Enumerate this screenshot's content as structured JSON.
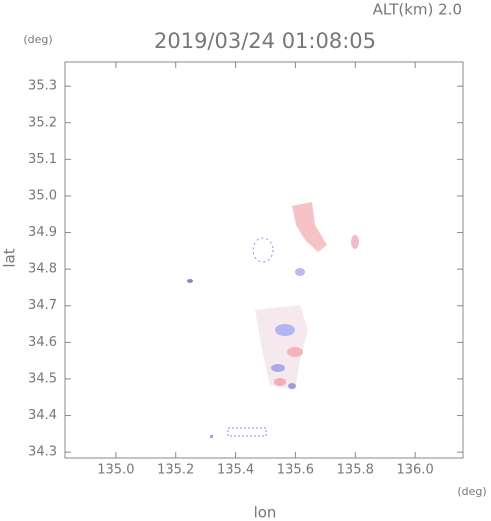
{
  "chart_data": {
    "type": "radar-map",
    "title": "2019/03/24 01:08:05",
    "subtitle": "ALT(km) 2.0",
    "x_label": "lon",
    "y_label": "lat",
    "x_unit": "(deg)",
    "y_unit": "(deg)",
    "xlim": [
      134.83,
      136.16
    ],
    "ylim": [
      34.284,
      35.366
    ],
    "xticks": [
      {
        "value": 135,
        "label": "135.0"
      },
      135.2,
      135.4,
      135.6,
      135.8,
      {
        "value": 136,
        "label": "136.0"
      }
    ],
    "yticks": [
      34.3,
      34.4,
      34.5,
      34.6,
      34.7,
      34.8,
      34.9,
      {
        "value": 35,
        "label": "35.0"
      },
      35.1,
      35.2,
      35.3
    ]
  }
}
